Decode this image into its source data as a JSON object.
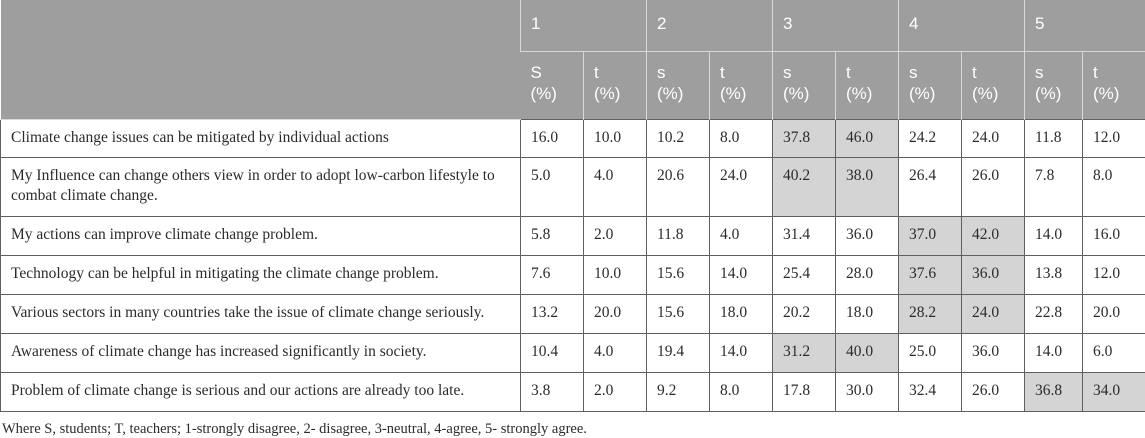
{
  "table": {
    "group_headers": [
      "1",
      "2",
      "3",
      "4",
      "5"
    ],
    "sub_headers": [
      {
        "letter": "S",
        "unit": "(%)"
      },
      {
        "letter": "t",
        "unit": "(%)"
      },
      {
        "letter": "s",
        "unit": "(%)"
      },
      {
        "letter": "t",
        "unit": "(%)"
      },
      {
        "letter": "s",
        "unit": "(%)"
      },
      {
        "letter": "t",
        "unit": "(%)"
      },
      {
        "letter": "s",
        "unit": "(%)"
      },
      {
        "letter": "t",
        "unit": "(%)"
      },
      {
        "letter": "s",
        "unit": "(%)"
      },
      {
        "letter": "t",
        "unit": "(%)"
      }
    ],
    "rows": [
      {
        "label": "Climate change issues can be mitigated by individual actions",
        "values": [
          "16.0",
          "10.0",
          "10.2",
          "8.0",
          "37.8",
          "46.0",
          "24.2",
          "24.0",
          "11.8",
          "12.0"
        ],
        "highlight": [
          4,
          5
        ]
      },
      {
        "label": "My Influence can change others view in order to adopt low-carbon lifestyle to combat climate change.",
        "values": [
          "5.0",
          "4.0",
          "20.6",
          "24.0",
          "40.2",
          "38.0",
          "26.4",
          "26.0",
          "7.8",
          "8.0"
        ],
        "highlight": [
          4,
          5
        ]
      },
      {
        "label": "My actions can improve climate change problem.",
        "values": [
          "5.8",
          "2.0",
          "11.8",
          "4.0",
          "31.4",
          "36.0",
          "37.0",
          "42.0",
          "14.0",
          "16.0"
        ],
        "highlight": [
          6,
          7
        ]
      },
      {
        "label": "Technology can be helpful in mitigating the climate change problem.",
        "values": [
          "7.6",
          "10.0",
          "15.6",
          "14.0",
          "25.4",
          "28.0",
          "37.6",
          "36.0",
          "13.8",
          "12.0"
        ],
        "highlight": [
          6,
          7
        ]
      },
      {
        "label": "Various sectors in many countries take the issue of climate change seriously.",
        "values": [
          "13.2",
          "20.0",
          "15.6",
          "18.0",
          "20.2",
          "18.0",
          "28.2",
          "24.0",
          "22.8",
          "20.0"
        ],
        "highlight": [
          6,
          7
        ]
      },
      {
        "label": "Awareness of climate change has increased significantly in society.",
        "values": [
          "10.4",
          "4.0",
          "19.4",
          "14.0",
          "31.2",
          "40.0",
          "25.0",
          "36.0",
          "14.0",
          "6.0"
        ],
        "highlight": [
          4,
          5
        ]
      },
      {
        "label": "Problem of climate change is serious and our actions are already too late.",
        "values": [
          "3.8",
          "2.0",
          "9.2",
          "8.0",
          "17.8",
          "30.0",
          "32.4",
          "26.0",
          "36.8",
          "34.0"
        ],
        "highlight": [
          8,
          9
        ]
      }
    ],
    "highlight_color": "#d4d4d4",
    "header_color": "#9e9e9e"
  },
  "footnote": "Where S, students; T, teachers; 1-strongly disagree, 2- disagree, 3-neutral, 4-agree, 5- strongly agree."
}
